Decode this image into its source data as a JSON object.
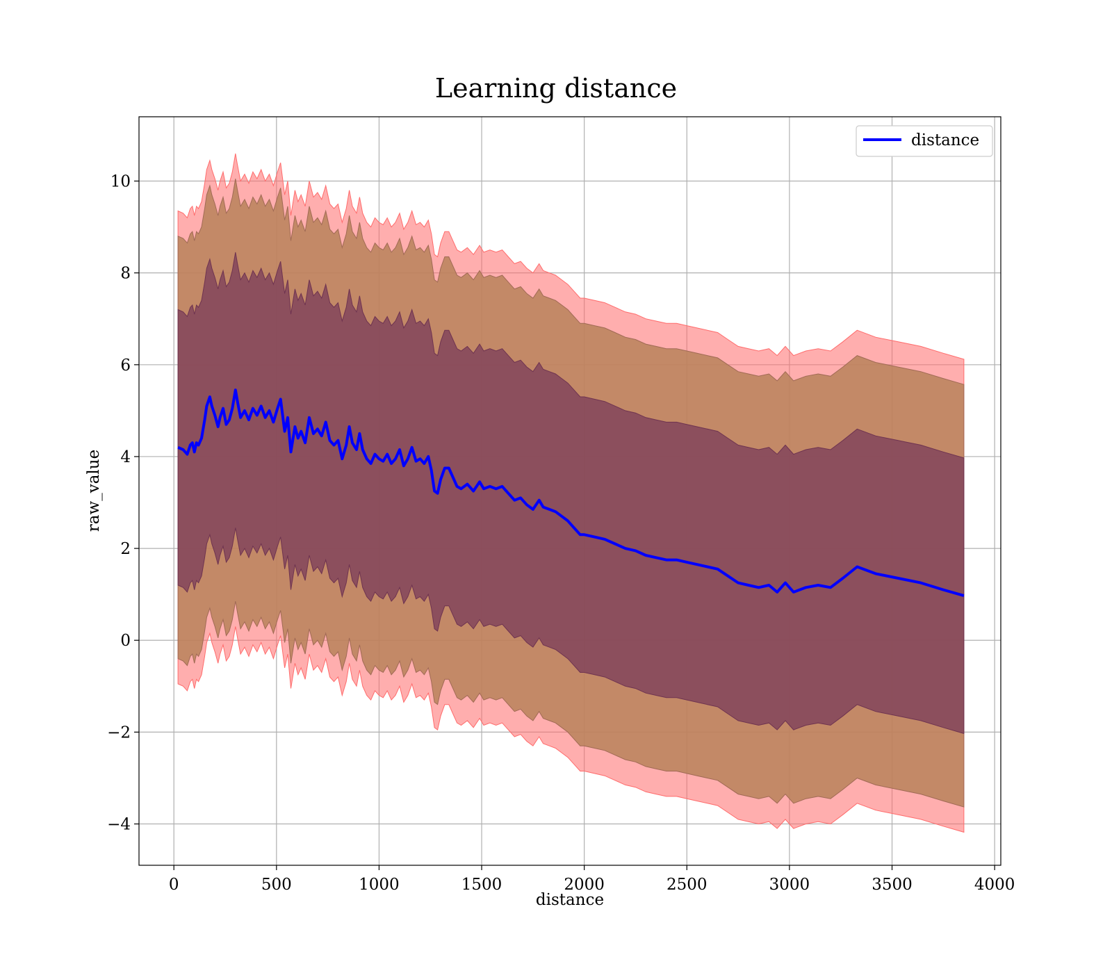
{
  "chart_data": {
    "type": "area",
    "title": "Learning distance",
    "xlabel": "distance",
    "ylabel": "raw_value",
    "xlim": [
      -170,
      4030
    ],
    "ylim": [
      -4.9,
      11.4
    ],
    "x_ticks": [
      0,
      500,
      1000,
      1500,
      2000,
      2500,
      3000,
      3500,
      4000
    ],
    "y_ticks": [
      -4,
      -2,
      0,
      2,
      4,
      6,
      8,
      10
    ],
    "grid": true,
    "legend": {
      "position": "top-right",
      "entries": [
        "distance"
      ]
    },
    "colors": {
      "line": "#0000ff",
      "band_outer": "#ff6b6b",
      "band_middle": "#b9825a",
      "band_inner": "#7a3c5a"
    },
    "band_offsets": {
      "inner": 3.0,
      "middle": 4.6,
      "outer": 5.15
    },
    "series": [
      {
        "name": "distance",
        "x": [
          20,
          45,
          65,
          80,
          90,
          100,
          110,
          120,
          135,
          150,
          160,
          175,
          185,
          200,
          215,
          225,
          240,
          255,
          270,
          285,
          300,
          310,
          325,
          345,
          365,
          385,
          405,
          425,
          445,
          465,
          485,
          505,
          520,
          540,
          555,
          570,
          590,
          605,
          620,
          640,
          660,
          680,
          700,
          720,
          740,
          760,
          780,
          800,
          820,
          840,
          855,
          870,
          890,
          905,
          920,
          940,
          960,
          980,
          1000,
          1020,
          1040,
          1060,
          1080,
          1100,
          1120,
          1140,
          1160,
          1180,
          1200,
          1220,
          1240,
          1255,
          1270,
          1285,
          1300,
          1320,
          1340,
          1360,
          1380,
          1400,
          1430,
          1460,
          1490,
          1510,
          1540,
          1570,
          1600,
          1630,
          1660,
          1690,
          1720,
          1750,
          1780,
          1800,
          1830,
          1860,
          1890,
          1920,
          1950,
          1980,
          2000,
          2050,
          2100,
          2150,
          2200,
          2250,
          2300,
          2350,
          2400,
          2450,
          2500,
          2550,
          2600,
          2650,
          2700,
          2750,
          2800,
          2850,
          2900,
          2940,
          2980,
          3020,
          3080,
          3140,
          3200,
          3260,
          3330,
          3420,
          3530,
          3640,
          3750,
          3850
        ],
        "values": [
          4.2,
          4.15,
          4.05,
          4.25,
          4.3,
          4.1,
          4.3,
          4.25,
          4.4,
          4.8,
          5.1,
          5.3,
          5.1,
          4.9,
          4.65,
          4.85,
          5.05,
          4.7,
          4.8,
          5.05,
          5.45,
          5.2,
          4.85,
          5.0,
          4.8,
          5.05,
          4.9,
          5.1,
          4.85,
          5.0,
          4.75,
          5.05,
          5.25,
          4.55,
          4.85,
          4.1,
          4.65,
          4.4,
          4.55,
          4.3,
          4.85,
          4.5,
          4.6,
          4.45,
          4.75,
          4.35,
          4.25,
          4.35,
          3.95,
          4.25,
          4.65,
          4.3,
          4.15,
          4.5,
          4.15,
          3.95,
          3.85,
          4.05,
          3.95,
          3.9,
          4.05,
          3.85,
          3.95,
          4.15,
          3.8,
          3.95,
          4.2,
          3.9,
          3.95,
          3.85,
          4.0,
          3.7,
          3.25,
          3.2,
          3.5,
          3.75,
          3.75,
          3.55,
          3.35,
          3.3,
          3.4,
          3.25,
          3.45,
          3.3,
          3.35,
          3.3,
          3.35,
          3.2,
          3.05,
          3.1,
          2.95,
          2.85,
          3.05,
          2.9,
          2.85,
          2.8,
          2.7,
          2.6,
          2.45,
          2.3,
          2.3,
          2.25,
          2.2,
          2.1,
          2.0,
          1.95,
          1.85,
          1.8,
          1.75,
          1.75,
          1.7,
          1.65,
          1.6,
          1.55,
          1.4,
          1.25,
          1.2,
          1.15,
          1.2,
          1.05,
          1.25,
          1.05,
          1.15,
          1.2,
          1.15,
          1.35,
          1.6,
          1.45,
          1.35,
          1.25,
          1.1,
          0.97
        ]
      }
    ]
  }
}
